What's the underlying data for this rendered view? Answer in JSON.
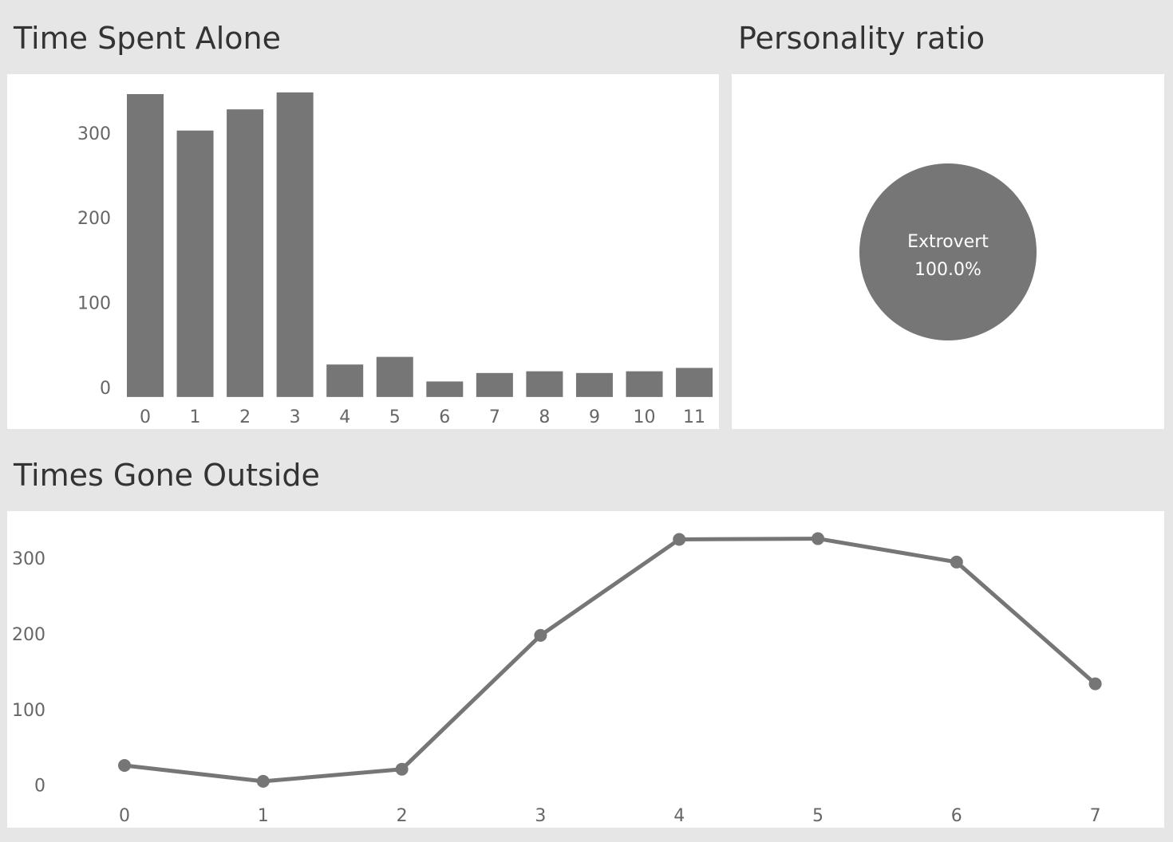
{
  "dashboard": {
    "titles": {
      "time_spent_alone": "Time Spent Alone",
      "personality_ratio": "Personality ratio",
      "times_gone_outside": "Times Gone Outside"
    }
  },
  "colors": {
    "mark": "#767676",
    "panel": "#ffffff",
    "background": "#e6e6e6",
    "text": "#333333",
    "tick": "#666666"
  },
  "chart_data": [
    {
      "id": "time_spent_alone",
      "type": "bar",
      "title": "Time Spent Alone",
      "xlabel": "",
      "ylabel": "",
      "categories": [
        "0",
        "1",
        "2",
        "3",
        "4",
        "5",
        "6",
        "7",
        "8",
        "9",
        "10",
        "11"
      ],
      "values": [
        346,
        303,
        328,
        348,
        27,
        36,
        7,
        17,
        19,
        17,
        19,
        23
      ],
      "ylim": [
        -18,
        362
      ],
      "yticks": [
        0,
        100,
        200,
        300
      ],
      "grid": false
    },
    {
      "id": "personality_ratio",
      "type": "pie",
      "title": "Personality ratio",
      "labels": [
        "Extrovert"
      ],
      "values": [
        100.0
      ],
      "value_labels": [
        "100.0%"
      ]
    },
    {
      "id": "times_gone_outside",
      "type": "line",
      "title": "Times Gone Outside",
      "xlabel": "",
      "ylabel": "",
      "x": [
        "0",
        "1",
        "2",
        "3",
        "4",
        "5",
        "6",
        "7"
      ],
      "values": [
        26,
        5,
        21,
        198,
        325,
        326,
        295,
        134
      ],
      "ylim": [
        -12,
        354
      ],
      "yticks": [
        0,
        100,
        200,
        300
      ],
      "grid": false
    }
  ]
}
